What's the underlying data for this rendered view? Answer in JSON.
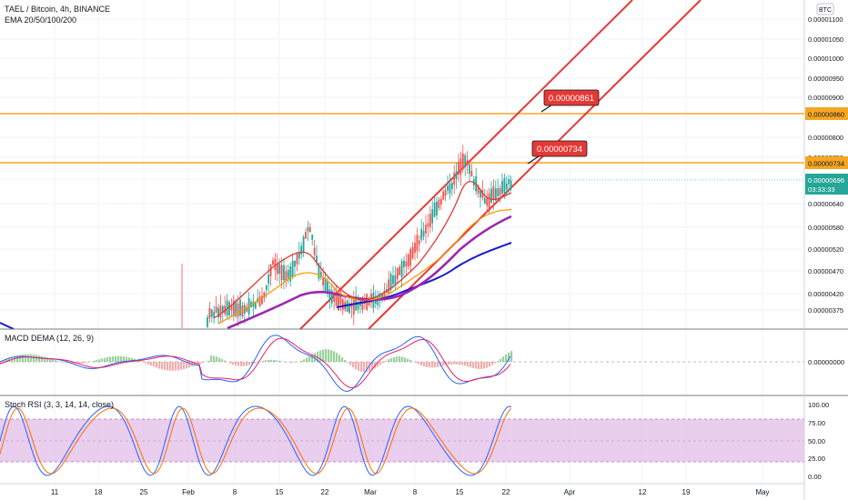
{
  "header": {
    "symbol_line": "TAEL / Bitcoin, 4h, BINANCE",
    "ema_line": "EMA 20/50/100/200",
    "currency_badge": "BTC"
  },
  "price_axis": {
    "ticks": [
      "0.00001100",
      "0.00001050",
      "0.00001000",
      "0.00000950",
      "0.00000900",
      "0.00000850",
      "0.00000800",
      "0.00000750",
      "0.00000700",
      "0.00000640",
      "0.00000580",
      "0.00000520",
      "0.00000470",
      "0.00000420",
      "0.00000375"
    ],
    "hline_860_label": "0.00000860",
    "hline_734_label": "0.00000734",
    "last_price": "0.00000696",
    "countdown": "03:33:33"
  },
  "annotations": {
    "upper_callout": "0.00000861",
    "lower_callout": "0.00000734"
  },
  "macd": {
    "label": "MACD DEMA (12, 26, 9)",
    "zero_label": "0.00000000"
  },
  "stoch": {
    "label": "Stoch RSI (3, 3, 14, 14, close)",
    "ticks": [
      "100.00",
      "75.00",
      "50.00",
      "25.00",
      "0.00"
    ]
  },
  "time_axis": {
    "labels": [
      "11",
      "18",
      "25",
      "Feb",
      "8",
      "15",
      "22",
      "Mar",
      "8",
      "15",
      "22",
      "Apr",
      "12",
      "19",
      "May"
    ]
  },
  "colors": {
    "hline": "#f5a623",
    "channel": "#e53935",
    "ema20": "#e53935",
    "ema50": "#ff9800",
    "ema100": "#9c27b0",
    "ema200": "#1a1acd",
    "last_price_badge": "#26a69a",
    "stoch_band": "#e1bee7",
    "callout": "#e53935"
  },
  "chart_data": {
    "type": "candlestick",
    "title": "TAEL / Bitcoin, 4h, BINANCE",
    "x_dates": [
      "Jan 11",
      "Jan 18",
      "Jan 25",
      "Feb 1",
      "Feb 8",
      "Feb 15",
      "Feb 22",
      "Mar 1",
      "Mar 8",
      "Mar 15",
      "Mar 22"
    ],
    "approx_close": [
      3.6e-06,
      3.6e-06,
      3.6e-06,
      3.7e-06,
      3.95e-06,
      4.8e-06,
      4.3e-06,
      4.1e-06,
      5.3e-06,
      7e-06,
      6.96e-06
    ],
    "horizontal_levels": [
      8.6e-06,
      7.34e-06
    ],
    "indicators": [
      "EMA 20",
      "EMA 50",
      "EMA 100",
      "EMA 200",
      "MACD DEMA (12, 26, 9)",
      "Stoch RSI (3, 3, 14, 14, close)"
    ],
    "stoch_band": [
      20,
      80
    ]
  }
}
